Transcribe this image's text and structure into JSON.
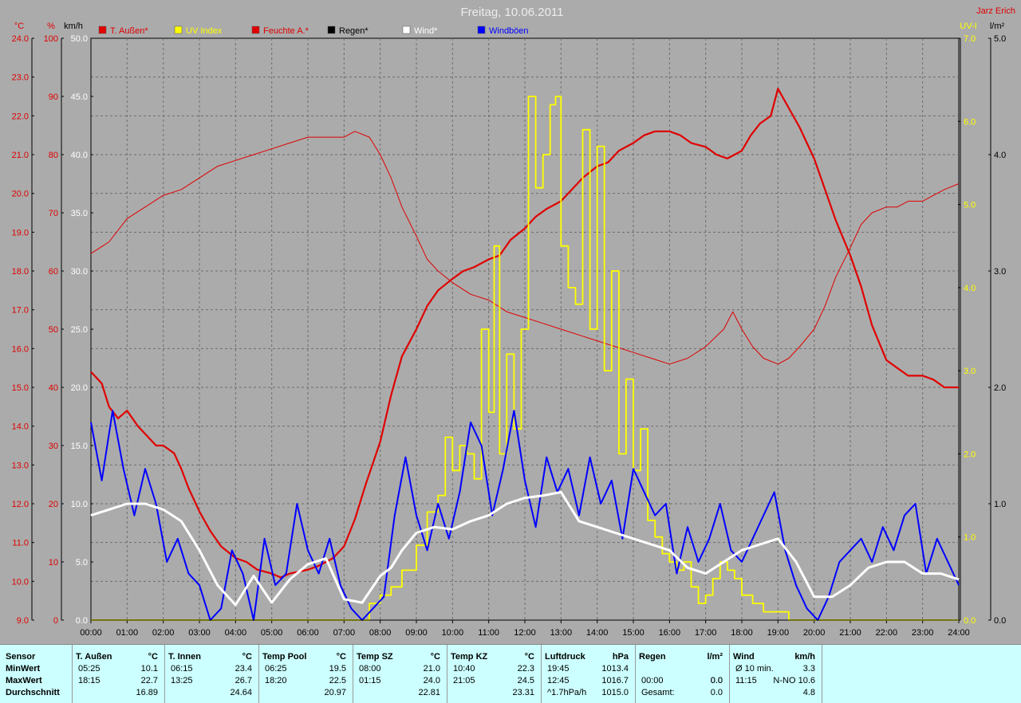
{
  "title": "Freitag, 10.06.2011",
  "author": "Jarz Erich",
  "colors": {
    "temp": "#e00000",
    "humid": "#e00000",
    "uv": "#ffff00",
    "wind": "#ffffff",
    "gust": "#0000ff",
    "rain": "#000000",
    "grid": "#6e6e6e"
  },
  "chart_data": {
    "type": "line",
    "axes": {
      "temp": {
        "unit": "°C",
        "min": 9.0,
        "max": 24.0,
        "ticks": [
          "9.0",
          "10.0",
          "11.0",
          "12.0",
          "13.0",
          "14.0",
          "15.0",
          "16.0",
          "17.0",
          "18.0",
          "19.0",
          "20.0",
          "21.0",
          "22.0",
          "23.0",
          "24.0"
        ]
      },
      "humidity": {
        "unit": "%",
        "min": 0,
        "max": 100,
        "ticks": [
          "0",
          "10",
          "20",
          "30",
          "40",
          "50",
          "60",
          "70",
          "80",
          "90",
          "100"
        ]
      },
      "wind": {
        "unit": "km/h",
        "min": 0,
        "max": 50,
        "ticks": [
          "0.0",
          "5.0",
          "10.0",
          "15.0",
          "20.0",
          "25.0",
          "30.0",
          "35.0",
          "40.0",
          "45.0",
          "50.0"
        ]
      },
      "uv": {
        "unit": "UV-I",
        "min": 0,
        "max": 7,
        "ticks": [
          "0.0",
          "1.0",
          "2.0",
          "3.0",
          "4.0",
          "5.0",
          "6.0",
          "7.0"
        ]
      },
      "rain": {
        "unit": "l/m²",
        "min": 0,
        "max": 5,
        "ticks": [
          "0.0",
          "1.0",
          "2.0",
          "3.0",
          "4.0",
          "5.0"
        ]
      },
      "x": {
        "min": 0,
        "max": 24,
        "ticks": [
          "00:00",
          "01:00",
          "02:00",
          "03:00",
          "04:00",
          "05:00",
          "06:00",
          "07:00",
          "08:00",
          "09:00",
          "10:00",
          "11:00",
          "12:00",
          "13:00",
          "14:00",
          "15:00",
          "16:00",
          "17:00",
          "18:00",
          "19:00",
          "20:00",
          "21:00",
          "22:00",
          "23:00",
          "24:00"
        ]
      }
    },
    "legend": [
      {
        "name": "T. Außen*",
        "color": "#e00000"
      },
      {
        "name": "UV Index",
        "color": "#ffff00"
      },
      {
        "name": "Feuchte A.*",
        "color": "#e00000"
      },
      {
        "name": "Regen*",
        "color": "#000000"
      },
      {
        "name": "Wind*",
        "color": "#ffffff"
      },
      {
        "name": "Windböen",
        "color": "#0000ff"
      }
    ],
    "series": [
      {
        "name": "T. Außen*",
        "axis": "temp",
        "x": [
          0,
          0.3,
          0.5,
          0.75,
          1,
          1.3,
          1.5,
          1.8,
          2,
          2.3,
          2.5,
          2.7,
          3,
          3.3,
          3.6,
          4,
          4.3,
          4.6,
          5,
          5.25,
          5.5,
          6,
          6.3,
          6.7,
          7,
          7.3,
          7.6,
          8,
          8.3,
          8.6,
          9,
          9.3,
          9.6,
          10,
          10.3,
          10.6,
          11,
          11.3,
          11.6,
          12,
          12.3,
          12.6,
          13,
          13.3,
          13.6,
          14,
          14.3,
          14.6,
          15,
          15.3,
          15.6,
          16,
          16.3,
          16.6,
          17,
          17.3,
          17.6,
          18,
          18.25,
          18.5,
          18.8,
          19,
          19.3,
          19.6,
          20,
          20.3,
          20.6,
          21,
          21.3,
          21.6,
          22,
          22.3,
          22.6,
          23,
          23.3,
          23.6,
          24
        ],
        "y": [
          15.4,
          15.1,
          14.5,
          14.2,
          14.4,
          14.0,
          13.8,
          13.5,
          13.5,
          13.3,
          12.9,
          12.4,
          11.8,
          11.3,
          10.9,
          10.6,
          10.5,
          10.3,
          10.2,
          10.1,
          10.2,
          10.3,
          10.4,
          10.6,
          10.9,
          11.6,
          12.5,
          13.6,
          14.8,
          15.8,
          16.5,
          17.1,
          17.5,
          17.8,
          18.0,
          18.1,
          18.3,
          18.4,
          18.8,
          19.1,
          19.4,
          19.6,
          19.8,
          20.1,
          20.4,
          20.7,
          20.8,
          21.1,
          21.3,
          21.5,
          21.6,
          21.6,
          21.5,
          21.3,
          21.2,
          21.0,
          20.9,
          21.1,
          21.5,
          21.8,
          22.0,
          22.7,
          22.2,
          21.7,
          20.9,
          20.1,
          19.3,
          18.4,
          17.6,
          16.6,
          15.7,
          15.5,
          15.3,
          15.3,
          15.2,
          15.0,
          15.0
        ]
      },
      {
        "name": "Feuchte A.*",
        "axis": "humidity",
        "x": [
          0,
          0.5,
          1,
          1.5,
          2,
          2.5,
          3,
          3.5,
          4,
          4.5,
          5,
          5.5,
          6,
          6.5,
          7,
          7.3,
          7.7,
          8,
          8.3,
          8.6,
          9,
          9.3,
          9.6,
          10,
          10.5,
          11,
          11.5,
          12,
          12.5,
          13,
          13.5,
          14,
          14.5,
          15,
          15.5,
          16,
          16.5,
          17,
          17.5,
          17.75,
          18,
          18.3,
          18.6,
          19,
          19.3,
          19.6,
          20,
          20.3,
          20.6,
          21,
          21.3,
          21.6,
          22,
          22.3,
          22.6,
          23,
          23.3,
          23.6,
          24
        ],
        "y": [
          63,
          65,
          69,
          71,
          73,
          74,
          76,
          78,
          79,
          80,
          81,
          82,
          83,
          83,
          83,
          84,
          83,
          80,
          76,
          71,
          66,
          62,
          60,
          58,
          56,
          55,
          53,
          52,
          51,
          50,
          49,
          48,
          47,
          46,
          45,
          44,
          45,
          47,
          50,
          53,
          50,
          47,
          45,
          44,
          45,
          47,
          50,
          54,
          59,
          64,
          68,
          70,
          71,
          71,
          72,
          72,
          73,
          74,
          75
        ]
      },
      {
        "name": "UV Index",
        "axis": "uv",
        "x": [
          0,
          6.5,
          7.3,
          7.7,
          8,
          8.3,
          8.6,
          9,
          9.3,
          9.6,
          9.8,
          10,
          10.2,
          10.4,
          10.6,
          10.8,
          11,
          11.15,
          11.3,
          11.5,
          11.7,
          11.9,
          12.1,
          12.3,
          12.5,
          12.7,
          12.85,
          13,
          13.2,
          13.4,
          13.6,
          13.8,
          14,
          14.2,
          14.4,
          14.6,
          14.8,
          15,
          15.2,
          15.4,
          15.6,
          15.8,
          16,
          16.2,
          16.4,
          16.6,
          16.8,
          17,
          17.2,
          17.4,
          17.6,
          17.8,
          18,
          18.3,
          18.6,
          19,
          19.3,
          19.6,
          20,
          24
        ],
        "y": [
          0,
          0,
          0,
          0.2,
          0.3,
          0.4,
          0.6,
          0.9,
          1.3,
          1.5,
          2.2,
          1.8,
          2.1,
          2.0,
          1.7,
          3.5,
          2.5,
          4.5,
          2.0,
          3.2,
          2.3,
          3.5,
          6.3,
          5.2,
          5.6,
          6.2,
          6.3,
          4.5,
          4.0,
          3.8,
          5.9,
          3.5,
          5.7,
          3.0,
          4.2,
          2.0,
          2.9,
          1.8,
          2.3,
          1.2,
          1.0,
          0.8,
          0.7,
          0.6,
          0.7,
          0.4,
          0.2,
          0.3,
          0.5,
          0.7,
          0.6,
          0.5,
          0.3,
          0.2,
          0.1,
          0.1,
          0,
          0,
          0,
          0
        ]
      },
      {
        "name": "Wind*",
        "axis": "wind",
        "x": [
          0,
          0.5,
          1,
          1.5,
          2,
          2.5,
          3,
          3.5,
          4,
          4.5,
          5,
          5.5,
          6,
          6.5,
          7,
          7.5,
          8,
          8.3,
          8.6,
          9,
          9.5,
          10,
          10.5,
          11,
          11.5,
          12,
          12.5,
          13,
          13.5,
          14,
          14.5,
          15,
          15.5,
          16,
          16.5,
          17,
          17.5,
          18,
          18.5,
          19,
          19.5,
          20,
          20.5,
          21,
          21.5,
          22,
          22.5,
          23,
          23.5,
          24
        ],
        "y": [
          9,
          9.5,
          10,
          10,
          9.5,
          8.5,
          6,
          3,
          1.3,
          3.8,
          1.5,
          3.5,
          4.8,
          5.3,
          1.8,
          1.5,
          3.8,
          4.5,
          6,
          7.5,
          8,
          7.8,
          8.5,
          9,
          10,
          10.5,
          10.7,
          11,
          8.5,
          8,
          7.5,
          7,
          6.5,
          6,
          4.5,
          4,
          5,
          6,
          6.5,
          7,
          5,
          2,
          2,
          3,
          4.5,
          5,
          5,
          4,
          4,
          3.5
        ]
      },
      {
        "name": "Windböen",
        "axis": "wind",
        "x": [
          0,
          0.3,
          0.6,
          0.9,
          1.2,
          1.5,
          1.8,
          2.1,
          2.4,
          2.7,
          3,
          3.3,
          3.6,
          3.9,
          4.2,
          4.5,
          4.8,
          5.1,
          5.4,
          5.7,
          6,
          6.3,
          6.6,
          6.9,
          7.2,
          7.5,
          7.8,
          8.1,
          8.4,
          8.7,
          9,
          9.3,
          9.6,
          9.9,
          10.2,
          10.5,
          10.8,
          11.1,
          11.4,
          11.7,
          12,
          12.3,
          12.6,
          12.9,
          13.2,
          13.5,
          13.8,
          14.1,
          14.4,
          14.7,
          15,
          15.3,
          15.6,
          15.9,
          16.2,
          16.5,
          16.8,
          17.1,
          17.4,
          17.7,
          18,
          18.3,
          18.6,
          18.9,
          19.2,
          19.5,
          19.8,
          20.1,
          20.4,
          20.7,
          21,
          21.3,
          21.6,
          21.9,
          22.2,
          22.5,
          22.8,
          23.1,
          23.4,
          23.7,
          24
        ],
        "y": [
          17,
          12,
          18,
          13,
          9,
          13,
          10,
          5,
          7,
          4,
          3,
          0,
          1,
          6,
          4,
          0,
          7,
          3,
          4,
          10,
          6,
          4,
          7,
          3,
          1,
          0,
          1,
          2,
          9,
          14,
          9,
          6,
          10,
          7,
          11,
          17,
          15,
          9,
          13,
          18,
          12,
          8,
          14,
          11,
          13,
          9,
          14,
          10,
          12,
          7,
          13,
          11,
          9,
          10,
          4,
          8,
          5,
          7,
          10,
          6,
          5,
          7,
          9,
          11,
          6,
          3,
          1,
          0,
          2,
          5,
          6,
          7,
          5,
          8,
          6,
          9,
          10,
          4,
          7,
          5,
          3
        ]
      }
    ]
  },
  "table": {
    "blocks": [
      {
        "label": "Sensor",
        "unit": "",
        "r1t": "",
        "r1v": "",
        "r2t": "",
        "r2v": "",
        "r3t": "",
        "r3v": ""
      },
      {
        "label": "T. Außen",
        "unit": "°C",
        "r1t": "05:25",
        "r1v": "10.1",
        "r2t": "18:15",
        "r2v": "22.7",
        "r3t": "",
        "r3v": "16.89"
      },
      {
        "label": "T. Innen",
        "unit": "°C",
        "r1t": "06:15",
        "r1v": "23.4",
        "r2t": "13:25",
        "r2v": "26.7",
        "r3t": "",
        "r3v": "24.64"
      },
      {
        "label": "Temp Pool",
        "unit": "°C",
        "r1t": "06:25",
        "r1v": "19.5",
        "r2t": "18:20",
        "r2v": "22.5",
        "r3t": "",
        "r3v": "20.97"
      },
      {
        "label": "Temp SZ",
        "unit": "°C",
        "r1t": "08:00",
        "r1v": "21.0",
        "r2t": "01:15",
        "r2v": "24.0",
        "r3t": "",
        "r3v": "22.81"
      },
      {
        "label": "Temp KZ",
        "unit": "°C",
        "r1t": "10:40",
        "r1v": "22.3",
        "r2t": "21:05",
        "r2v": "24.5",
        "r3t": "",
        "r3v": "23.31"
      },
      {
        "label": "Luftdruck",
        "unit": "hPa",
        "r1t": "19:45",
        "r1v": "1013.4",
        "r2t": "12:45",
        "r2v": "1016.7",
        "r3t": "^1.7hPa/h",
        "r3v": "1015.0"
      },
      {
        "label": "Regen",
        "unit": "l/m²",
        "r1t": "",
        "r1v": "",
        "r2t": "00:00",
        "r2v": "0.0",
        "r3t": "Gesamt:",
        "r3v": "0.0",
        "r1v2": "0.0"
      },
      {
        "label": "Wind",
        "unit": "km/h",
        "r1t": "Ø 10 min.",
        "r1v": "3.3",
        "r2t": "11:15",
        "r2v": "N-NO 10.6",
        "r3t": "",
        "r3v": "4.8"
      }
    ],
    "row_labels": [
      "MinWert",
      "MaxWert",
      "Durchschnitt"
    ]
  }
}
